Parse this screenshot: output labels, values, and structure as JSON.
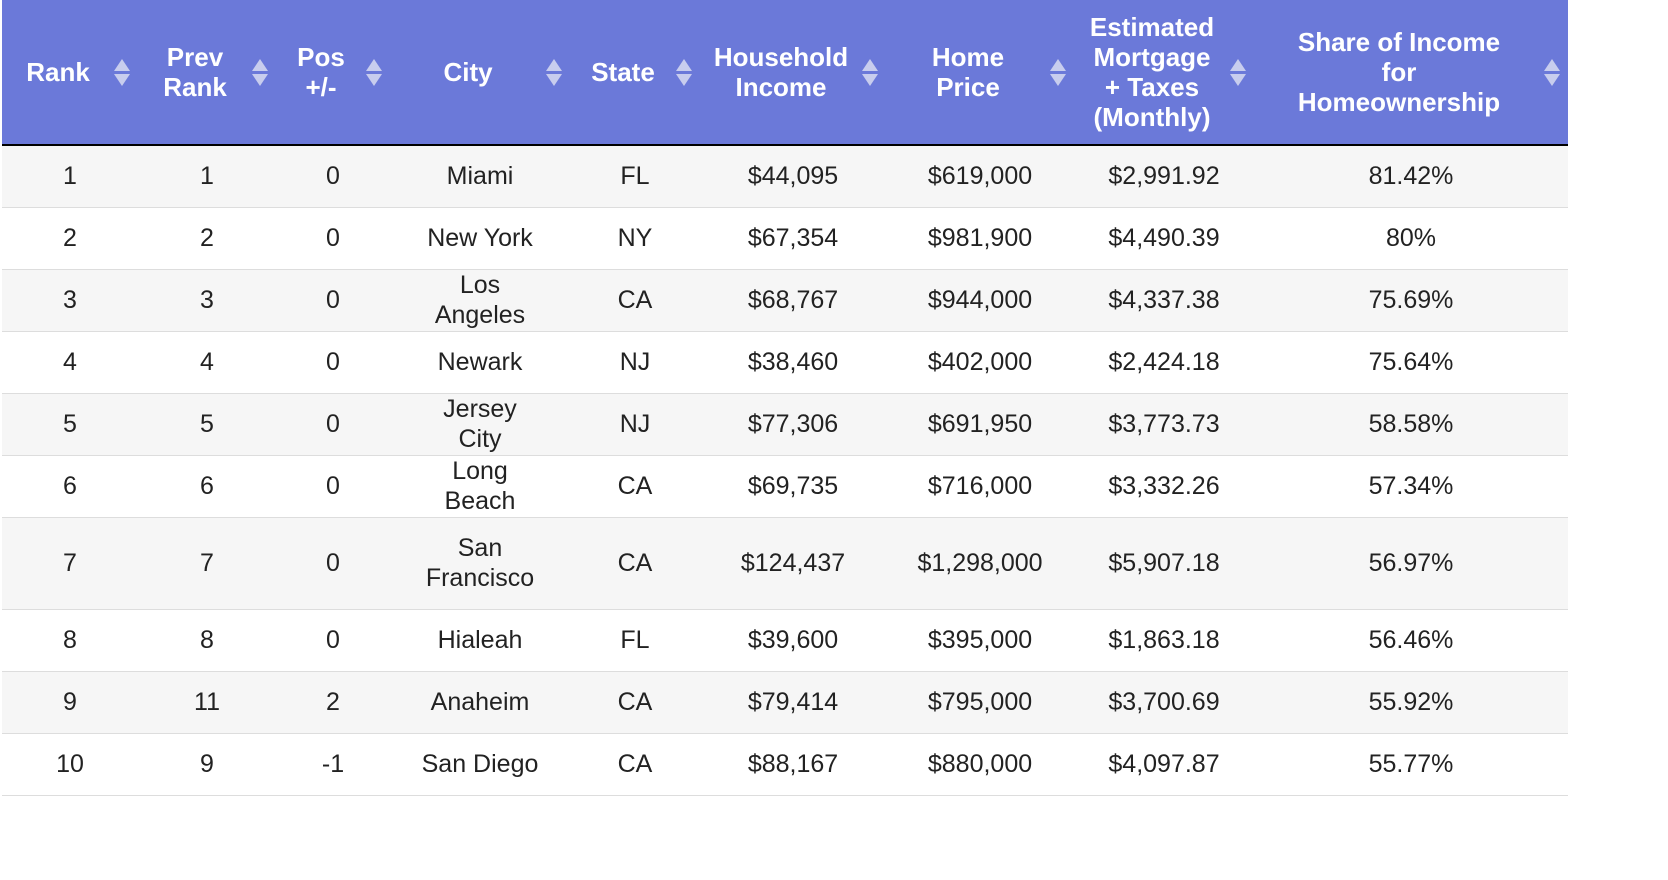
{
  "columns": [
    {
      "key": "rank",
      "label_lines": [
        "Rank"
      ]
    },
    {
      "key": "prev_rank",
      "label_lines": [
        "Prev",
        "Rank"
      ]
    },
    {
      "key": "pos",
      "label_lines": [
        "Pos",
        "+/-"
      ]
    },
    {
      "key": "city",
      "label_lines": [
        "City"
      ]
    },
    {
      "key": "state",
      "label_lines": [
        "State"
      ]
    },
    {
      "key": "income",
      "label_lines": [
        "Household",
        "Income"
      ]
    },
    {
      "key": "price",
      "label_lines": [
        "Home",
        "Price"
      ]
    },
    {
      "key": "mortgage",
      "label_lines": [
        "Estimated",
        "Mortgage",
        "+ Taxes",
        "(Monthly)"
      ]
    },
    {
      "key": "share",
      "label_lines": [
        "Share of Income",
        "for",
        "Homeownership"
      ]
    }
  ],
  "rows": [
    {
      "rank": "1",
      "prev_rank": "1",
      "pos": "0",
      "city": "Miami",
      "state": "FL",
      "income": "$44,095",
      "price": "$619,000",
      "mortgage": "$2,991.92",
      "share": "81.42%"
    },
    {
      "rank": "2",
      "prev_rank": "2",
      "pos": "0",
      "city": "New York",
      "state": "NY",
      "income": "$67,354",
      "price": "$981,900",
      "mortgage": "$4,490.39",
      "share": "80%"
    },
    {
      "rank": "3",
      "prev_rank": "3",
      "pos": "0",
      "city": "Los Angeles",
      "state": "CA",
      "income": "$68,767",
      "price": "$944,000",
      "mortgage": "$4,337.38",
      "share": "75.69%"
    },
    {
      "rank": "4",
      "prev_rank": "4",
      "pos": "0",
      "city": "Newark",
      "state": "NJ",
      "income": "$38,460",
      "price": "$402,000",
      "mortgage": "$2,424.18",
      "share": "75.64%"
    },
    {
      "rank": "5",
      "prev_rank": "5",
      "pos": "0",
      "city": "Jersey City",
      "state": "NJ",
      "income": "$77,306",
      "price": "$691,950",
      "mortgage": "$3,773.73",
      "share": "58.58%"
    },
    {
      "rank": "6",
      "prev_rank": "6",
      "pos": "0",
      "city": "Long Beach",
      "state": "CA",
      "income": "$69,735",
      "price": "$716,000",
      "mortgage": "$3,332.26",
      "share": "57.34%"
    },
    {
      "rank": "7",
      "prev_rank": "7",
      "pos": "0",
      "city": "San Francisco",
      "state": "CA",
      "income": "$124,437",
      "price": "$1,298,000",
      "mortgage": "$5,907.18",
      "share": "56.97%"
    },
    {
      "rank": "8",
      "prev_rank": "8",
      "pos": "0",
      "city": "Hialeah",
      "state": "FL",
      "income": "$39,600",
      "price": "$395,000",
      "mortgage": "$1,863.18",
      "share": "56.46%"
    },
    {
      "rank": "9",
      "prev_rank": "11",
      "pos": "2",
      "city": "Anaheim",
      "state": "CA",
      "income": "$79,414",
      "price": "$795,000",
      "mortgage": "$3,700.69",
      "share": "55.92%"
    },
    {
      "rank": "10",
      "prev_rank": "9",
      "pos": "-1",
      "city": "San Diego",
      "state": "CA",
      "income": "$88,167",
      "price": "$880,000",
      "mortgage": "$4,097.87",
      "share": "55.77%"
    }
  ]
}
